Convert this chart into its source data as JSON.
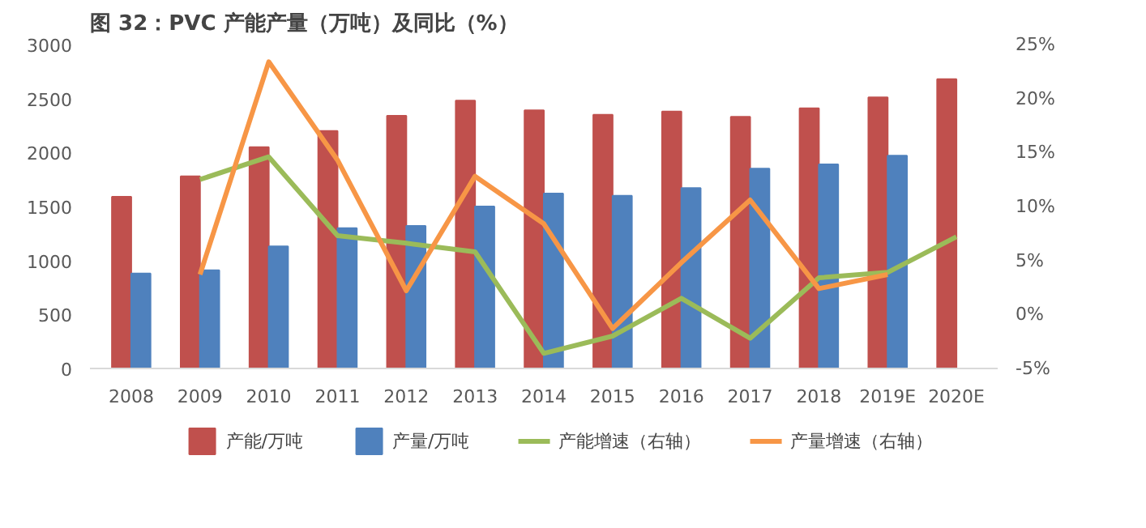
{
  "chart_data": {
    "type": "bar",
    "title": "图 32：PVC 产能产量（万吨）及同比（%）",
    "categories": [
      "2008",
      "2009",
      "2010",
      "2011",
      "2012",
      "2013",
      "2014",
      "2015",
      "2016",
      "2017",
      "2018",
      "2019E",
      "2020E"
    ],
    "series": [
      {
        "name": "产能/万吨",
        "color": "#c0504d",
        "values": [
          1590,
          1780,
          2050,
          2200,
          2340,
          2480,
          2390,
          2350,
          2380,
          2330,
          2410,
          2510,
          2680
        ]
      },
      {
        "name": "产量/万吨",
        "color": "#4f81bd",
        "values": [
          880,
          910,
          1130,
          1300,
          1320,
          1500,
          1620,
          1600,
          1670,
          1850,
          1890,
          1970,
          null
        ]
      },
      {
        "name": "产能增速（右轴）",
        "type": "line",
        "axis": "y2",
        "color": "#9bbb59",
        "values": [
          null,
          12.5,
          14.6,
          7.3,
          6.6,
          5.8,
          -3.6,
          -2.0,
          1.5,
          -2.2,
          3.4,
          3.9,
          7.2
        ]
      },
      {
        "name": "产量增速（右轴）",
        "type": "line",
        "axis": "y2",
        "color": "#f79646",
        "values": [
          null,
          3.7,
          23.4,
          14.3,
          2.2,
          12.8,
          8.4,
          -1.3,
          4.8,
          10.6,
          2.4,
          3.7,
          null
        ]
      }
    ],
    "ylim": [
      0,
      3000
    ],
    "yticks": [
      0,
      500,
      1000,
      1500,
      2000,
      2500,
      3000
    ],
    "y2lim": [
      -5,
      25
    ],
    "y2ticks": [
      {
        "value": -5,
        "label": "-5%"
      },
      {
        "value": 0,
        "label": "0%"
      },
      {
        "value": 5,
        "label": "5%"
      },
      {
        "value": 10,
        "label": "10%"
      },
      {
        "value": 15,
        "label": "15%"
      },
      {
        "value": 20,
        "label": "20%"
      },
      {
        "value": 25,
        "label": "25%"
      }
    ],
    "legend": "bottom",
    "grid": false
  }
}
